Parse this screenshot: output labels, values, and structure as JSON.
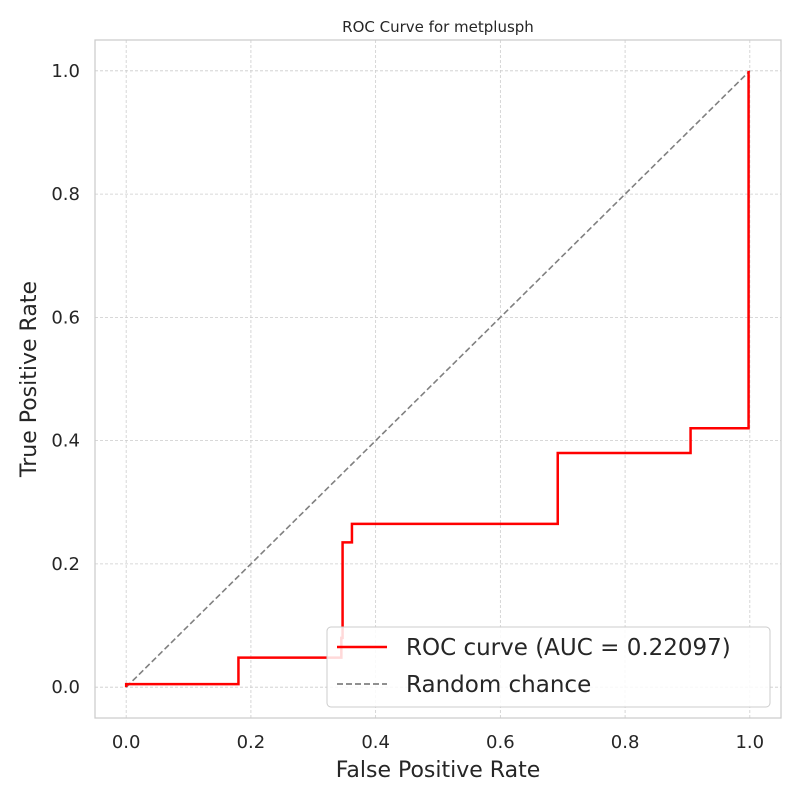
{
  "chart_data": {
    "type": "line",
    "title": "ROC Curve for metplusph",
    "xlabel": "False Positive Rate",
    "ylabel": "True Positive Rate",
    "xlim": [
      -0.05,
      1.05
    ],
    "ylim": [
      -0.05,
      1.05
    ],
    "xticks": [
      "0.0",
      "0.2",
      "0.4",
      "0.6",
      "0.8",
      "1.0"
    ],
    "yticks": [
      "0.0",
      "0.2",
      "0.4",
      "0.6",
      "0.8",
      "1.0"
    ],
    "grid": true,
    "legend_position": "lower-right",
    "series": [
      {
        "name": "ROC curve (AUC = 0.22097)",
        "color": "#ff0000",
        "style": "solid",
        "x": [
          0.0,
          0.0,
          0.18,
          0.18,
          0.345,
          0.345,
          0.347,
          0.347,
          0.362,
          0.362,
          0.692,
          0.692,
          0.905,
          0.905,
          0.998,
          0.998
        ],
        "y": [
          0.0,
          0.005,
          0.005,
          0.048,
          0.048,
          0.08,
          0.08,
          0.235,
          0.235,
          0.265,
          0.265,
          0.38,
          0.38,
          0.42,
          0.42,
          1.0
        ]
      },
      {
        "name": "Random chance",
        "color": "#808080",
        "style": "dashed",
        "x": [
          0.0,
          1.0
        ],
        "y": [
          0.0,
          1.0
        ]
      }
    ]
  }
}
